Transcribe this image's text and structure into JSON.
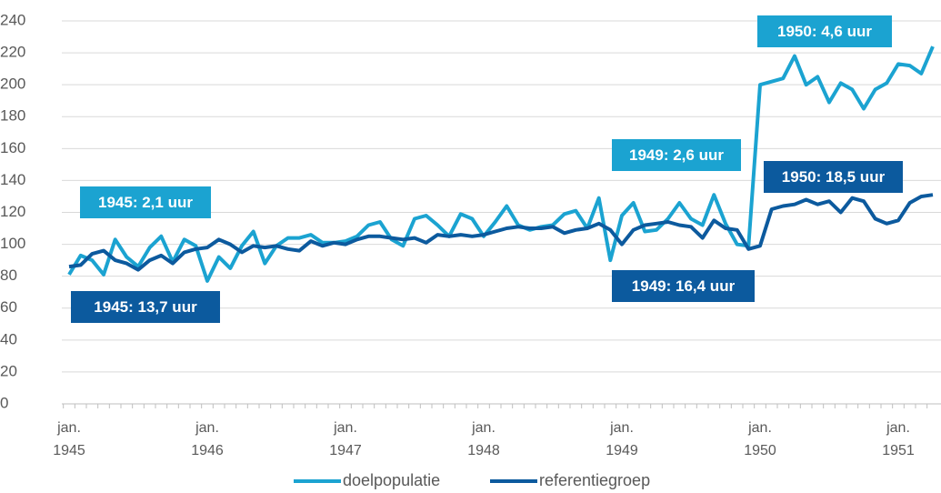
{
  "chart_data": {
    "type": "line",
    "categories": [
      "jan. 1945",
      null,
      null,
      null,
      null,
      null,
      null,
      null,
      null,
      null,
      null,
      null,
      "jan. 1946",
      null,
      null,
      null,
      null,
      null,
      null,
      null,
      null,
      null,
      null,
      null,
      "jan. 1947",
      null,
      null,
      null,
      null,
      null,
      null,
      null,
      null,
      null,
      null,
      null,
      "jan. 1948",
      null,
      null,
      null,
      null,
      null,
      null,
      null,
      null,
      null,
      null,
      null,
      "jan. 1949",
      null,
      null,
      null,
      null,
      null,
      null,
      null,
      null,
      null,
      null,
      null,
      "jan. 1950",
      null,
      null,
      null,
      null,
      null,
      null,
      null,
      null,
      null,
      null,
      null,
      "jan. 1951",
      null,
      null,
      null
    ],
    "series": [
      {
        "name": "doelpopulatie",
        "color": "#1ba3d1",
        "values": [
          81,
          93,
          90,
          81,
          103,
          92,
          86,
          98,
          105,
          89,
          103,
          99,
          77,
          92,
          85,
          99,
          108,
          88,
          99,
          104,
          104,
          106,
          101,
          101,
          102,
          105,
          112,
          114,
          103,
          99,
          116,
          118,
          112,
          105,
          119,
          116,
          105,
          114,
          124,
          112,
          109,
          111,
          112,
          119,
          121,
          110,
          129,
          90,
          118,
          126,
          108,
          109,
          116,
          126,
          116,
          112,
          131,
          113,
          100,
          99,
          200,
          202,
          204,
          218,
          200,
          205,
          189,
          201,
          197,
          185,
          197,
          201,
          213,
          212,
          207,
          224
        ]
      },
      {
        "name": "referentiegroep",
        "color": "#0c5a9e",
        "values": [
          86,
          87,
          94,
          96,
          90,
          88,
          84,
          90,
          93,
          88,
          95,
          97,
          98,
          103,
          100,
          95,
          99,
          98,
          99,
          97,
          96,
          102,
          99,
          101,
          100,
          103,
          105,
          105,
          104,
          103,
          104,
          101,
          106,
          105,
          106,
          105,
          106,
          108,
          110,
          111,
          110,
          110,
          111,
          107,
          109,
          110,
          113,
          109,
          100,
          109,
          112,
          113,
          114,
          112,
          111,
          104,
          115,
          110,
          109,
          97,
          99,
          122,
          124,
          125,
          128,
          125,
          127,
          120,
          129,
          127,
          116,
          113,
          115,
          126,
          130,
          131
        ]
      }
    ],
    "annotations": [
      {
        "text": "1945: 2,1 uur",
        "color": "#1ba3d1"
      },
      {
        "text": "1949: 2,6 uur",
        "color": "#1ba3d1"
      },
      {
        "text": "1950: 4,6 uur",
        "color": "#1ba3d1"
      },
      {
        "text": "1945: 13,7 uur",
        "color": "#0c5a9e"
      },
      {
        "text": "1949: 16,4 uur",
        "color": "#0c5a9e"
      },
      {
        "text": "1950: 18,5 uur",
        "color": "#0c5a9e"
      }
    ],
    "ylim": [
      0,
      240
    ],
    "yticks": [
      0,
      20,
      40,
      60,
      80,
      100,
      120,
      140,
      160,
      180,
      200,
      220,
      240
    ],
    "grid": true
  }
}
